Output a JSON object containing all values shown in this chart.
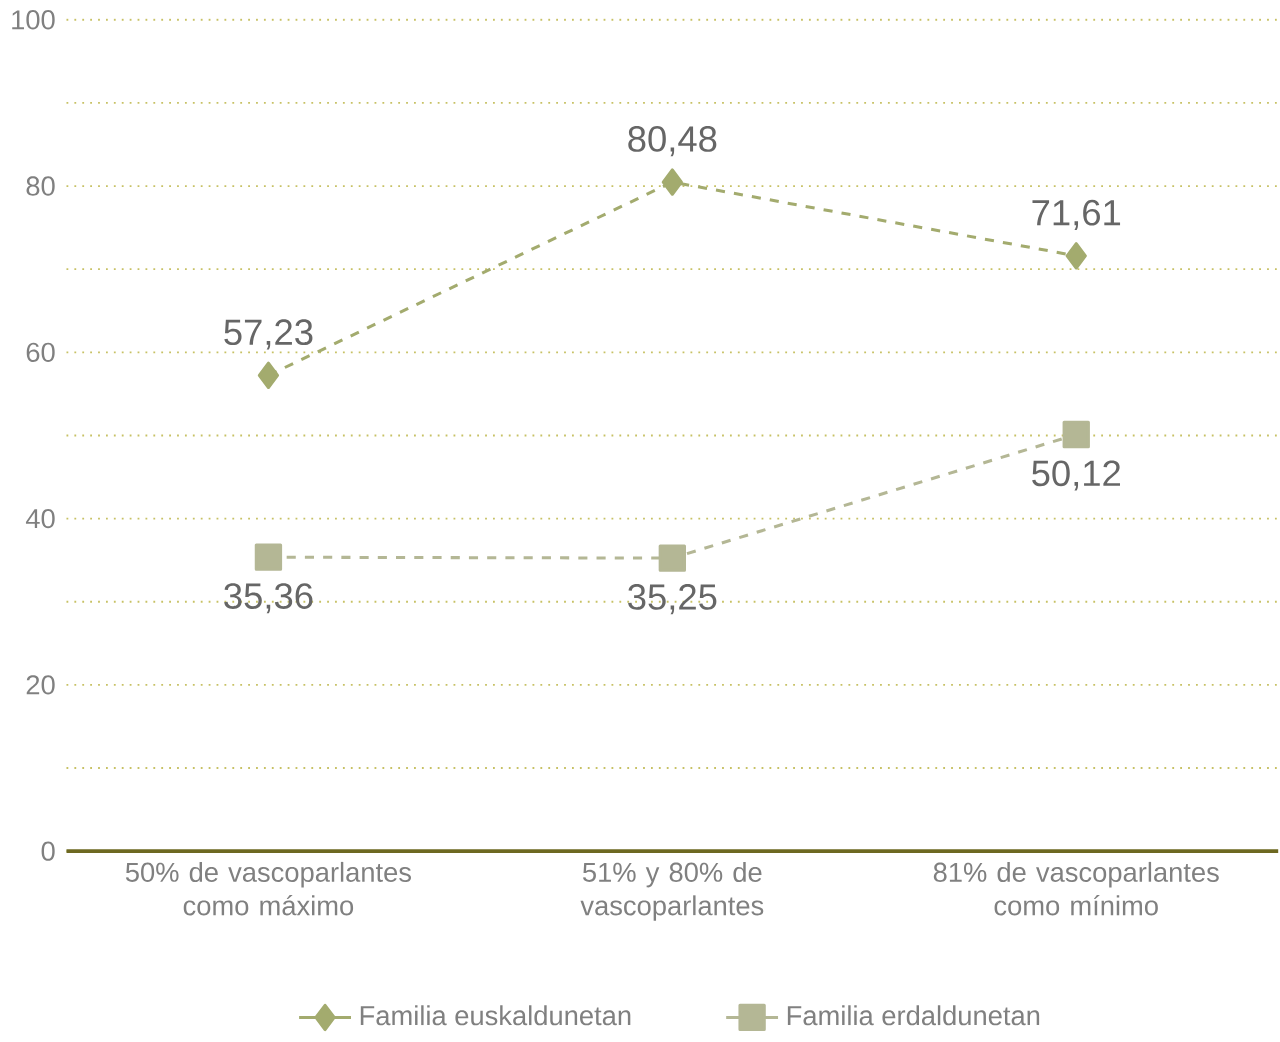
{
  "chart_data": {
    "type": "line",
    "categories": [
      "50% de vascoparlantes como máximo",
      "51% y 80% de vascoparlantes",
      "81% de vascoparlantes como mínimo"
    ],
    "series": [
      {
        "name": "Familia euskaldunetan",
        "color": "#a3ab6e",
        "values": [
          57.23,
          80.48,
          71.61
        ],
        "value_labels": [
          "57,23",
          "80,48",
          "71,61"
        ],
        "marker": "diamond"
      },
      {
        "name": "Familia erdaldunetan",
        "color": "#b4b795",
        "values": [
          35.36,
          35.25,
          50.12
        ],
        "value_labels": [
          "35,36",
          "35,25",
          "50,12"
        ],
        "marker": "square"
      }
    ],
    "ylim": [
      0,
      100
    ],
    "yticks": [
      0,
      20,
      40,
      60,
      80,
      100
    ],
    "grid": "y",
    "legend": "bottom",
    "line_style": "dashed"
  }
}
